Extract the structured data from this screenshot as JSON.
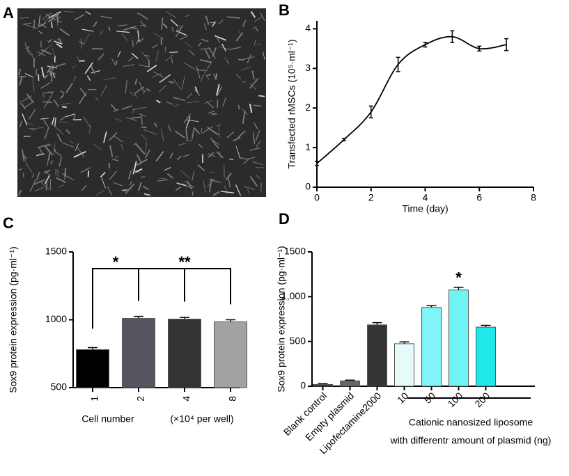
{
  "chart_data": [
    {
      "type": "image",
      "panel": "A"
    },
    {
      "type": "line",
      "panel": "B",
      "x": [
        0,
        1,
        2,
        3,
        4,
        5,
        6,
        7
      ],
      "series": [
        {
          "color": "#000000",
          "values": [
            0.6,
            1.2,
            1.9,
            3.1,
            3.6,
            3.8,
            3.5,
            3.6
          ],
          "errors": [
            0.05,
            0.03,
            0.15,
            0.18,
            0.06,
            0.15,
            0.06,
            0.15
          ]
        }
      ],
      "xlim": [
        0,
        8
      ],
      "xticks": [
        0,
        2,
        4,
        6,
        8
      ],
      "ylim": [
        0,
        4.2
      ],
      "yticks": [
        0,
        1,
        2,
        3,
        4
      ],
      "xlabel": "Time (day)",
      "ylabel": "Transfected rMSCs (10⁵·ml⁻¹)"
    },
    {
      "type": "bar",
      "panel": "C",
      "categories": [
        "1",
        "2",
        "4",
        "8"
      ],
      "values": [
        780,
        1010,
        1005,
        985
      ],
      "errors": [
        15,
        15,
        12,
        15
      ],
      "colors": [
        "#000000",
        "#55555f",
        "#333333",
        "#a2a2a2"
      ],
      "ylim": [
        500,
        1500
      ],
      "yticks": [
        500,
        1000,
        1500
      ],
      "ylabel": "Sox9 protein expression (pg·ml⁻¹)",
      "xlabel": "Cell number",
      "xlabel_note": "(×10⁴ per well)",
      "annotations": [
        "*",
        "**"
      ]
    },
    {
      "type": "bar",
      "panel": "D",
      "categories": [
        "Blank control",
        "Empty plasmid",
        "Lipofectamine2000",
        "10",
        "50",
        "100",
        "200"
      ],
      "values": [
        20,
        60,
        685,
        475,
        880,
        1075,
        660
      ],
      "errors": [
        8,
        8,
        25,
        20,
        20,
        30,
        20
      ],
      "colors": [
        "#333333",
        "#666666",
        "#333333",
        "#e6fafa",
        "#80f5f5",
        "#70f3f3",
        "#20e8e8"
      ],
      "ylim": [
        0,
        1500
      ],
      "yticks": [
        0,
        500,
        {
          "value": 1000,
          "label": "1,000"
        },
        1500
      ],
      "ylabel": "Sox9 protein expression (pg·ml⁻¹)",
      "annotations": [
        "*"
      ],
      "group_label": [
        "Cationic nanosized liposome",
        "with differentr amount of plasmid (ng)"
      ]
    }
  ]
}
